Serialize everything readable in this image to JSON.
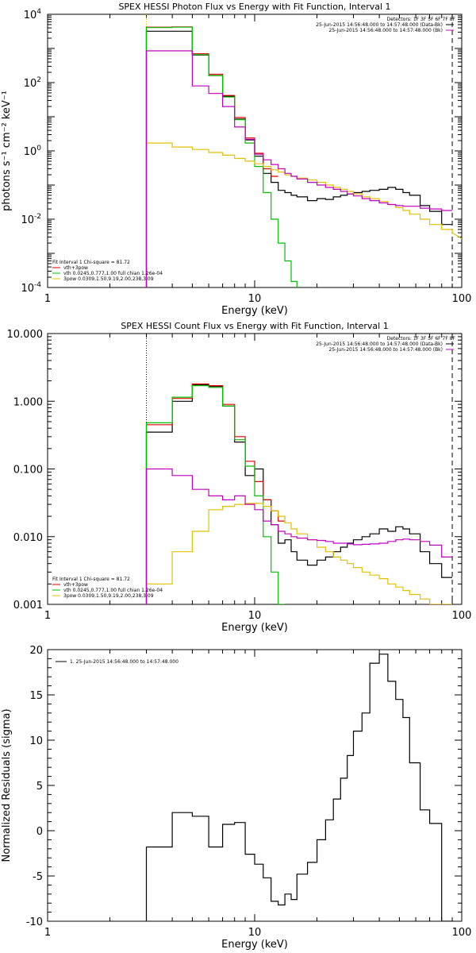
{
  "colors": {
    "data": "#000000",
    "total": "#e00000",
    "thermal": "#00c000",
    "powerlaw": "#e0c000",
    "background": "#c000c0"
  },
  "chart_data": [
    {
      "type": "line",
      "title": "SPEX HESSI Photon Flux vs Energy with Fit Function, Interval 1",
      "xlabel": "Energy (keV)",
      "ylabel": "photons s⁻¹ cm⁻² keV⁻¹",
      "xscale": "log",
      "yscale": "log",
      "xlim": [
        1,
        100
      ],
      "ylim": [
        0.0001,
        10000
      ],
      "xticks": [
        {
          "v": 1,
          "label": "1"
        },
        {
          "v": 10,
          "label": "10"
        },
        {
          "v": 100,
          "label": "100"
        }
      ],
      "yticks": [
        {
          "v": 0.0001,
          "base": "10",
          "exp": "-4"
        },
        {
          "v": 0.01,
          "base": "10",
          "exp": "-2"
        },
        {
          "v": 1,
          "base": "10",
          "exp": "0"
        },
        {
          "v": 100,
          "base": "10",
          "exp": "2"
        },
        {
          "v": 10000,
          "base": "10",
          "exp": "4"
        }
      ],
      "detectors": "Detectors: 1F 3F 5F 6F 7F 8F",
      "time_legend": [
        {
          "text": "25-Jun-2015 14:56:48.000 to 14:57:48.000 (Data-Bk)",
          "color": "#000000"
        },
        {
          "text": "25-Jun-2015 14:56:48.000 to 14:57:48.000 (Bk)",
          "color": "#c000c0"
        }
      ],
      "fit_title": "Fit Interval  1    Chi-square = 81.72",
      "fit_legend": [
        {
          "text": "vth+3pow",
          "color": "#e00000"
        },
        {
          "text": "vth 0.0245,0.777,1.00   full chian 1.26e-04",
          "color": "#00c000"
        },
        {
          "text": "3pow 0.0309,1.50,9.19,2.00,238,3.09",
          "color": "#e0c000"
        }
      ],
      "vlines": [
        {
          "x": 3,
          "style": "dotted",
          "color": "#e0c000"
        },
        {
          "x": 90,
          "style": "dashed",
          "color": "#000000"
        }
      ],
      "edges": [
        3,
        4,
        5,
        6,
        7,
        8,
        9,
        10,
        11,
        12,
        13,
        14,
        15,
        16,
        18,
        20,
        22,
        24,
        26,
        28,
        30,
        33,
        36,
        40,
        44,
        48,
        52,
        56,
        63,
        70,
        80,
        90
      ],
      "series": [
        {
          "name": "Data-Bk",
          "color": "#000000",
          "values": [
            3200,
            3200,
            640,
            160,
            40,
            8.5,
            2.1,
            0.7,
            0.22,
            0.12,
            0.07,
            0.06,
            0.05,
            0.045,
            0.035,
            0.04,
            0.038,
            0.045,
            0.05,
            0.055,
            0.06,
            0.065,
            0.07,
            0.075,
            0.085,
            0.075,
            0.06,
            0.05,
            0.025,
            0.017,
            0.007
          ]
        },
        {
          "name": "vth+3pow",
          "color": "#e00000",
          "values": [
            4200,
            4300,
            700,
            175,
            42,
            9.5,
            2.4,
            0.85,
            0.3,
            0.18
          ]
        },
        {
          "name": "vth",
          "color": "#00c000",
          "values": [
            4100,
            4200,
            660,
            160,
            38,
            8.2,
            1.7,
            0.35,
            0.06,
            0.01,
            0.002,
            0.0006,
            0.00015,
            5e-05
          ]
        },
        {
          "name": "3pow",
          "color": "#e0c000",
          "values": [
            1.7,
            1.3,
            1.1,
            0.9,
            0.75,
            0.6,
            0.5,
            0.42,
            0.35,
            0.28,
            0.24,
            0.2,
            0.18,
            0.16,
            0.14,
            0.12,
            0.1,
            0.085,
            0.075,
            0.065,
            0.055,
            0.045,
            0.04,
            0.033,
            0.027,
            0.022,
            0.018,
            0.014,
            0.01,
            0.007,
            0.005
          ],
          "tail": [
            [
              90,
              0.004
            ],
            [
              100,
              0.0027
            ]
          ]
        },
        {
          "name": "Bk",
          "color": "#c000c0",
          "values": [
            850,
            850,
            80,
            48,
            20,
            5,
            2.2,
            0.8,
            0.55,
            0.4,
            0.3,
            0.22,
            0.18,
            0.15,
            0.12,
            0.1,
            0.085,
            0.075,
            0.065,
            0.055,
            0.048,
            0.04,
            0.035,
            0.03,
            0.027,
            0.025,
            0.024,
            0.024,
            0.021,
            0.02,
            0.018
          ]
        }
      ]
    },
    {
      "type": "line",
      "title": "SPEX HESSI Count Flux vs Energy with Fit Function, Interval 1",
      "xlabel": "Energy (keV)",
      "ylabel": "",
      "xscale": "log",
      "yscale": "log",
      "xlim": [
        1,
        100
      ],
      "ylim": [
        0.001,
        10
      ],
      "xticks": [
        {
          "v": 1,
          "label": "1"
        },
        {
          "v": 10,
          "label": "10"
        },
        {
          "v": 100,
          "label": "100"
        }
      ],
      "yticks": [
        {
          "v": 0.001,
          "label": "0.001"
        },
        {
          "v": 0.01,
          "label": "0.010"
        },
        {
          "v": 0.1,
          "label": "0.100"
        },
        {
          "v": 1,
          "label": "1.000"
        },
        {
          "v": 10,
          "label": "10.000"
        }
      ],
      "detectors": "Detectors: 1F 3F 5F 6F 7F 8F",
      "time_legend": [
        {
          "text": "25-Jun-2015 14:56:48.000 to 14:57:48.000 (Data-Bk)",
          "color": "#000000"
        },
        {
          "text": "25-Jun-2015 14:56:48.000 to 14:57:48.000 (Bk)",
          "color": "#c000c0"
        }
      ],
      "fit_title": "Fit Interval  1    Chi-square = 81.72",
      "fit_legend": [
        {
          "text": "vth+3pow",
          "color": "#e00000"
        },
        {
          "text": "vth 0.0245,0.777,1.00   full chian 1.26e-04",
          "color": "#00c000"
        },
        {
          "text": "3pow 0.0309,1.50,9.19,2.00,238,3.09",
          "color": "#e0c000"
        }
      ],
      "vlines": [
        {
          "x": 3,
          "style": "dotted",
          "color": "#000000"
        },
        {
          "x": 90,
          "style": "dashed",
          "color": "#000000"
        }
      ],
      "edges": [
        3,
        4,
        5,
        6,
        7,
        8,
        9,
        10,
        11,
        12,
        13,
        14,
        15,
        16,
        18,
        20,
        22,
        24,
        26,
        28,
        30,
        33,
        36,
        40,
        44,
        48,
        52,
        56,
        63,
        70,
        80,
        90
      ],
      "series": [
        {
          "name": "Data-Bk",
          "color": "#000000",
          "values": [
            0.35,
            1.0,
            1.75,
            1.65,
            0.85,
            0.25,
            0.08,
            0.1,
            0.035,
            0.015,
            0.008,
            0.009,
            0.006,
            0.0045,
            0.0038,
            0.0045,
            0.005,
            0.006,
            0.007,
            0.008,
            0.009,
            0.01,
            0.011,
            0.013,
            0.012,
            0.014,
            0.013,
            0.011,
            0.006,
            0.004,
            0.0025
          ]
        },
        {
          "name": "vth+3pow",
          "color": "#e00000",
          "values": [
            0.45,
            1.1,
            1.8,
            1.7,
            0.9,
            0.3,
            0.13,
            0.065,
            0.035,
            0.024,
            0.017
          ]
        },
        {
          "name": "vth",
          "color": "#00c000",
          "values": [
            0.48,
            1.15,
            1.7,
            1.6,
            0.85,
            0.27,
            0.11,
            0.04,
            0.01,
            0.003,
            0.001
          ]
        },
        {
          "name": "3pow",
          "color": "#e0c000",
          "values": [
            0.002,
            0.006,
            0.012,
            0.025,
            0.028,
            0.03,
            0.031,
            0.031,
            0.028,
            0.024,
            0.02,
            0.016,
            0.013,
            0.011,
            0.009,
            0.007,
            0.006,
            0.005,
            0.0045,
            0.004,
            0.0035,
            0.003,
            0.0027,
            0.0024,
            0.002,
            0.0018,
            0.0016,
            0.0014,
            0.0012,
            0.001,
            0.001
          ]
        },
        {
          "name": "Bk",
          "color": "#c000c0",
          "values": [
            0.1,
            0.08,
            0.05,
            0.04,
            0.035,
            0.04,
            0.03,
            0.025,
            0.017,
            0.015,
            0.012,
            0.011,
            0.01,
            0.0095,
            0.009,
            0.0088,
            0.0085,
            0.008,
            0.008,
            0.0078,
            0.0076,
            0.0077,
            0.0078,
            0.008,
            0.0085,
            0.009,
            0.0092,
            0.009,
            0.0085,
            0.0075,
            0.005
          ]
        }
      ]
    },
    {
      "type": "line",
      "title": "",
      "xlabel": "Energy (keV)",
      "ylabel": "Normalized Residuals (sigma)",
      "xscale": "log",
      "yscale": "linear",
      "xlim": [
        1,
        100
      ],
      "ylim": [
        -10,
        20
      ],
      "xticks": [
        {
          "v": 1,
          "label": "1"
        },
        {
          "v": 10,
          "label": "10"
        },
        {
          "v": 100,
          "label": "100"
        }
      ],
      "yticks": [
        {
          "v": -10,
          "label": "-10"
        },
        {
          "v": -5,
          "label": "-5"
        },
        {
          "v": 0,
          "label": "0"
        },
        {
          "v": 5,
          "label": "5"
        },
        {
          "v": 10,
          "label": "10"
        },
        {
          "v": 15,
          "label": "15"
        },
        {
          "v": 20,
          "label": "20"
        }
      ],
      "legend": [
        {
          "text": "1. 25-Jun-2015 14:56:48.000 to 14:57:48.000",
          "color": "#000000"
        }
      ],
      "edges": [
        3,
        4,
        5,
        6,
        7,
        8,
        9,
        10,
        11,
        12,
        13,
        14,
        15,
        16,
        18,
        20,
        22,
        24,
        26,
        28,
        30,
        33,
        36,
        40,
        44,
        48,
        52,
        56,
        63,
        70,
        80,
        90
      ],
      "series": [
        {
          "name": "1",
          "color": "#000000",
          "values": [
            -1.8,
            2.0,
            1.6,
            -1.8,
            0.7,
            0.9,
            -2.6,
            -3.7,
            -5.2,
            -7.8,
            -8.2,
            -7.0,
            -7.6,
            -4.8,
            -3.5,
            -1.0,
            1.2,
            3.5,
            5.8,
            8.3,
            11.0,
            13.0,
            18.5,
            19.5,
            16.5,
            14.5,
            12.5,
            7.5,
            2.3,
            0.8,
            -10
          ]
        }
      ]
    }
  ]
}
